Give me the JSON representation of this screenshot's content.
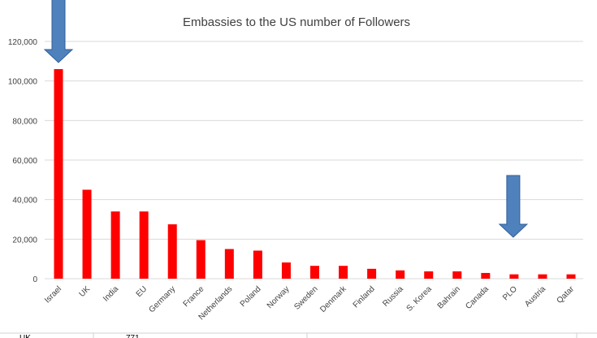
{
  "chart_data": {
    "type": "bar",
    "title": "Embassies to the US number of Followers",
    "xlabel": "",
    "ylabel": "",
    "ylim": [
      0,
      120000
    ],
    "yticks": [
      "0",
      "20,000",
      "40,000",
      "60,000",
      "80,000",
      "100,000",
      "120,000"
    ],
    "grid": true,
    "categories": [
      "Israel",
      "UK",
      "India",
      "EU",
      "Germany",
      "France",
      "Netherlands",
      "Poland",
      "Norway",
      "Sweden",
      "Denmark",
      "Finland",
      "Russia",
      "S. Korea",
      "Bahrain",
      "Canada",
      "PLO",
      "Austria",
      "Qatar"
    ],
    "values": [
      106000,
      45000,
      34000,
      34000,
      27500,
      19500,
      15000,
      14200,
      8200,
      6500,
      6500,
      5000,
      4200,
      3700,
      3700,
      2900,
      2200,
      2200,
      2200
    ],
    "bar_color": "#ff0000",
    "annotations": [
      {
        "type": "arrow-down",
        "points_to": "Israel",
        "color": "#4f81bd"
      },
      {
        "type": "arrow-down",
        "points_to": "PLO",
        "color": "#4f81bd"
      }
    ]
  },
  "below_fragments": {
    "left": "UK",
    "right": "771"
  }
}
